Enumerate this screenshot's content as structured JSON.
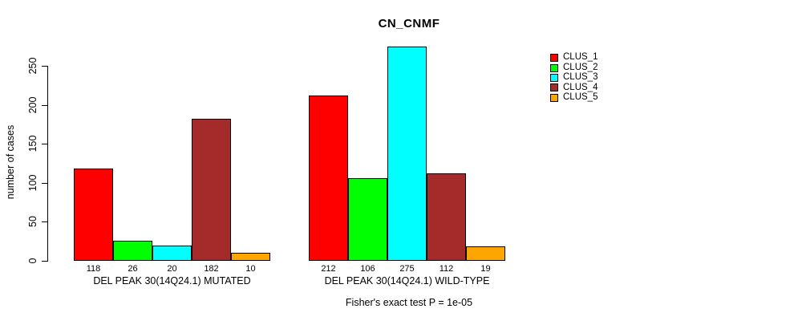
{
  "chart_data": {
    "type": "bar",
    "title": "CN_CNMF",
    "subtitle": "Fisher's exact test P = 1e-05",
    "ylabel": "number of cases",
    "xlabel": "",
    "y_ticks": [
      0,
      50,
      100,
      150,
      200,
      250
    ],
    "ylim": [
      0,
      280
    ],
    "grid": false,
    "legend_position": "top-right",
    "categories": [
      "DEL PEAK 30(14Q24.1) MUTATED",
      "DEL PEAK 30(14Q24.1) WILD-TYPE"
    ],
    "series": [
      {
        "name": "CLUS_1",
        "color": "#FF0000",
        "values": [
          118,
          212
        ]
      },
      {
        "name": "CLUS_2",
        "color": "#00FF00",
        "values": [
          26,
          106
        ]
      },
      {
        "name": "CLUS_3",
        "color": "#00FFFF",
        "values": [
          20,
          275
        ]
      },
      {
        "name": "CLUS_4",
        "color": "#A52A2A",
        "values": [
          182,
          112
        ]
      },
      {
        "name": "CLUS_5",
        "color": "#FFA500",
        "values": [
          10,
          19
        ]
      }
    ],
    "bar_value_labels": {
      "group1": [
        "118",
        "26",
        "20",
        "182",
        "10"
      ],
      "group2": [
        "212",
        "106",
        "275",
        "112",
        "19"
      ]
    }
  }
}
